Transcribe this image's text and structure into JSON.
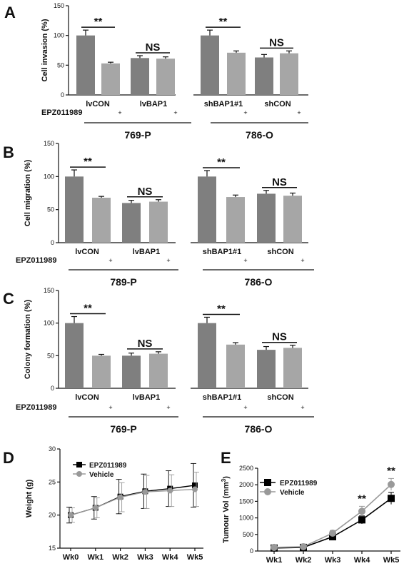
{
  "chart_data": [
    {
      "id": "A",
      "type": "bar",
      "panel_label": "A",
      "ylabel": "Cell invasion (%)",
      "ylim": [
        0,
        150
      ],
      "yticks": [
        "0",
        "50",
        "100",
        "150"
      ],
      "bars": [
        100,
        53,
        62,
        61,
        100,
        71,
        63,
        70
      ],
      "errors": [
        9,
        2,
        4,
        3,
        9,
        3,
        5,
        4
      ],
      "categories": [
        "lvCON",
        "lvBAP1",
        "shBAP1#1",
        "shCON"
      ],
      "treatment_label": "EPZ011989",
      "treatment_marks": [
        "+",
        "+",
        "+",
        "+"
      ],
      "groups": [
        "769-P",
        "786-O"
      ],
      "significance": [
        "**",
        "NS",
        "**",
        "NS"
      ]
    },
    {
      "id": "B",
      "type": "bar",
      "panel_label": "B",
      "ylabel": "Cell migration (%)",
      "ylim": [
        0,
        150
      ],
      "yticks": [
        "0",
        "50",
        "100",
        "150"
      ],
      "bars": [
        100,
        68,
        60,
        62,
        100,
        69,
        74,
        71
      ],
      "errors": [
        10,
        2,
        4,
        3,
        9,
        3,
        5,
        4
      ],
      "categories": [
        "lvCON",
        "lvBAP1",
        "shBAP1#1",
        "shCON"
      ],
      "treatment_label": "EPZ011989",
      "treatment_marks": [
        "+",
        "+",
        "+",
        "+"
      ],
      "groups": [
        "789-P",
        "786-O"
      ],
      "significance": [
        "**",
        "NS",
        "**",
        "NS"
      ]
    },
    {
      "id": "C",
      "type": "bar",
      "panel_label": "C",
      "ylabel": "Colony formation (%)",
      "ylim": [
        0,
        150
      ],
      "yticks": [
        "0",
        "50",
        "100",
        "150"
      ],
      "bars": [
        100,
        50,
        50,
        53,
        100,
        67,
        59,
        62
      ],
      "errors": [
        10,
        2,
        4,
        3,
        9,
        3,
        5,
        4
      ],
      "categories": [
        "lvCON",
        "lvBAP1",
        "shBAP1#1",
        "shCON"
      ],
      "treatment_label": "EPZ011989",
      "treatment_marks": [
        "+",
        "+",
        "+",
        "+"
      ],
      "groups": [
        "769-P",
        "786-O"
      ],
      "significance": [
        "**",
        "NS",
        "**",
        "NS"
      ]
    },
    {
      "id": "D",
      "type": "line",
      "panel_label": "D",
      "ylabel": "Weight (g)",
      "x": [
        "Wk0",
        "Wk1",
        "Wk2",
        "Wk3",
        "Wk4",
        "Wk5"
      ],
      "ylim": [
        15,
        30
      ],
      "yticks": [
        "15",
        "20",
        "25",
        "30"
      ],
      "series": [
        {
          "name": "EPZ011989",
          "values": [
            20.0,
            21.1,
            22.8,
            23.6,
            24.0,
            24.5
          ],
          "errors": [
            1.2,
            1.7,
            2.6,
            2.6,
            2.7,
            3.3
          ],
          "color": "#000000"
        },
        {
          "name": "Vehicle",
          "values": [
            20.0,
            21.1,
            22.7,
            23.5,
            23.7,
            23.9
          ],
          "errors": [
            1.1,
            1.5,
            2.2,
            2.5,
            2.4,
            2.6
          ],
          "color": "#999999"
        }
      ]
    },
    {
      "id": "E",
      "type": "line",
      "panel_label": "E",
      "ylabel": "Tumour Vol",
      "ylabel_unit": "(mm",
      "ylabel_sup": "3",
      "ylabel_close": ")",
      "x": [
        "Wk1",
        "Wk2",
        "Wk3",
        "Wk4",
        "Wk5"
      ],
      "ylim": [
        0,
        2500
      ],
      "yticks": [
        "0",
        "500",
        "1000",
        "1500",
        "2000",
        "2500"
      ],
      "series": [
        {
          "name": "EPZ011989",
          "values": [
            90,
            110,
            430,
            940,
            1590
          ],
          "errors": [
            30,
            30,
            80,
            120,
            180
          ],
          "color": "#000000"
        },
        {
          "name": "Vehicle",
          "values": [
            110,
            130,
            540,
            1200,
            2010
          ],
          "errors": [
            30,
            40,
            80,
            150,
            180
          ],
          "color": "#999999"
        }
      ],
      "significance": [
        "",
        "",
        "",
        "**",
        "**"
      ]
    }
  ],
  "colors": {
    "dark_bar": "#7f7f7f",
    "light_bar": "#a6a6a6",
    "axis": "#111111"
  }
}
